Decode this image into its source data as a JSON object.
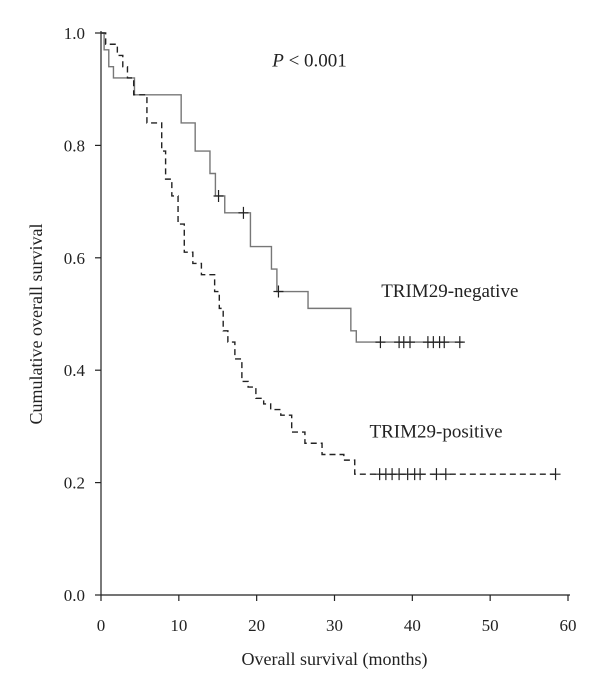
{
  "chart_data": {
    "type": "line",
    "xlabel": "Overall survival (months)",
    "ylabel": "Cumulative overall survival",
    "xlim": [
      0,
      60
    ],
    "ylim": [
      0,
      1.0
    ],
    "xticks": [
      0,
      10,
      20,
      30,
      40,
      50,
      60
    ],
    "yticks": [
      "0.0",
      "0.2",
      "0.4",
      "0.6",
      "0.8",
      "1.0"
    ],
    "grid": false,
    "annotation": {
      "italic": "P",
      "rest": " < 0.001",
      "at": [
        22,
        0.94
      ]
    },
    "series": [
      {
        "name": "TRIM29-negative",
        "style": "solid",
        "color": "#777777",
        "label_at": [
          36,
          0.53
        ],
        "steps": [
          [
            0,
            1.0
          ],
          [
            0.4,
            0.97
          ],
          [
            1.0,
            0.94
          ],
          [
            1.6,
            0.92
          ],
          [
            4.3,
            0.89
          ],
          [
            10.3,
            0.84
          ],
          [
            12.1,
            0.79
          ],
          [
            14.0,
            0.75
          ],
          [
            14.7,
            0.71
          ],
          [
            15.9,
            0.68
          ],
          [
            19.2,
            0.62
          ],
          [
            21.9,
            0.58
          ],
          [
            22.6,
            0.54
          ],
          [
            26.6,
            0.51
          ],
          [
            32.1,
            0.47
          ],
          [
            32.8,
            0.45
          ],
          [
            46.5,
            0.45
          ]
        ],
        "censored": [
          [
            15.1,
            0.71
          ],
          [
            18.3,
            0.68
          ],
          [
            22.8,
            0.54
          ],
          [
            35.9,
            0.45
          ],
          [
            38.3,
            0.45
          ],
          [
            38.9,
            0.45
          ],
          [
            39.7,
            0.45
          ],
          [
            42.0,
            0.45
          ],
          [
            42.7,
            0.45
          ],
          [
            43.5,
            0.45
          ],
          [
            44.1,
            0.45
          ],
          [
            46.1,
            0.45
          ]
        ]
      },
      {
        "name": "TRIM29-positive",
        "style": "dashed",
        "color": "#222222",
        "label_at": [
          34.5,
          0.28
        ],
        "steps": [
          [
            0,
            1.0
          ],
          [
            0.6,
            0.98
          ],
          [
            2.1,
            0.96
          ],
          [
            2.8,
            0.94
          ],
          [
            3.4,
            0.92
          ],
          [
            4.2,
            0.89
          ],
          [
            5.9,
            0.84
          ],
          [
            7.8,
            0.79
          ],
          [
            8.3,
            0.74
          ],
          [
            9.1,
            0.71
          ],
          [
            9.9,
            0.66
          ],
          [
            10.7,
            0.61
          ],
          [
            11.8,
            0.59
          ],
          [
            12.9,
            0.57
          ],
          [
            14.6,
            0.54
          ],
          [
            15.2,
            0.51
          ],
          [
            15.7,
            0.47
          ],
          [
            16.3,
            0.45
          ],
          [
            17.2,
            0.42
          ],
          [
            18.1,
            0.38
          ],
          [
            18.9,
            0.37
          ],
          [
            19.9,
            0.35
          ],
          [
            20.9,
            0.34
          ],
          [
            21.8,
            0.33
          ],
          [
            23.1,
            0.32
          ],
          [
            24.5,
            0.29
          ],
          [
            26.2,
            0.27
          ],
          [
            28.4,
            0.25
          ],
          [
            31.2,
            0.24
          ],
          [
            32.6,
            0.215
          ],
          [
            58.5,
            0.215
          ]
        ],
        "censored": [
          [
            35.8,
            0.215
          ],
          [
            36.6,
            0.215
          ],
          [
            37.4,
            0.215
          ],
          [
            38.3,
            0.215
          ],
          [
            39.4,
            0.215
          ],
          [
            40.3,
            0.215
          ],
          [
            41.0,
            0.215
          ],
          [
            43.1,
            0.215
          ],
          [
            44.3,
            0.215
          ],
          [
            58.4,
            0.215
          ]
        ]
      }
    ]
  }
}
